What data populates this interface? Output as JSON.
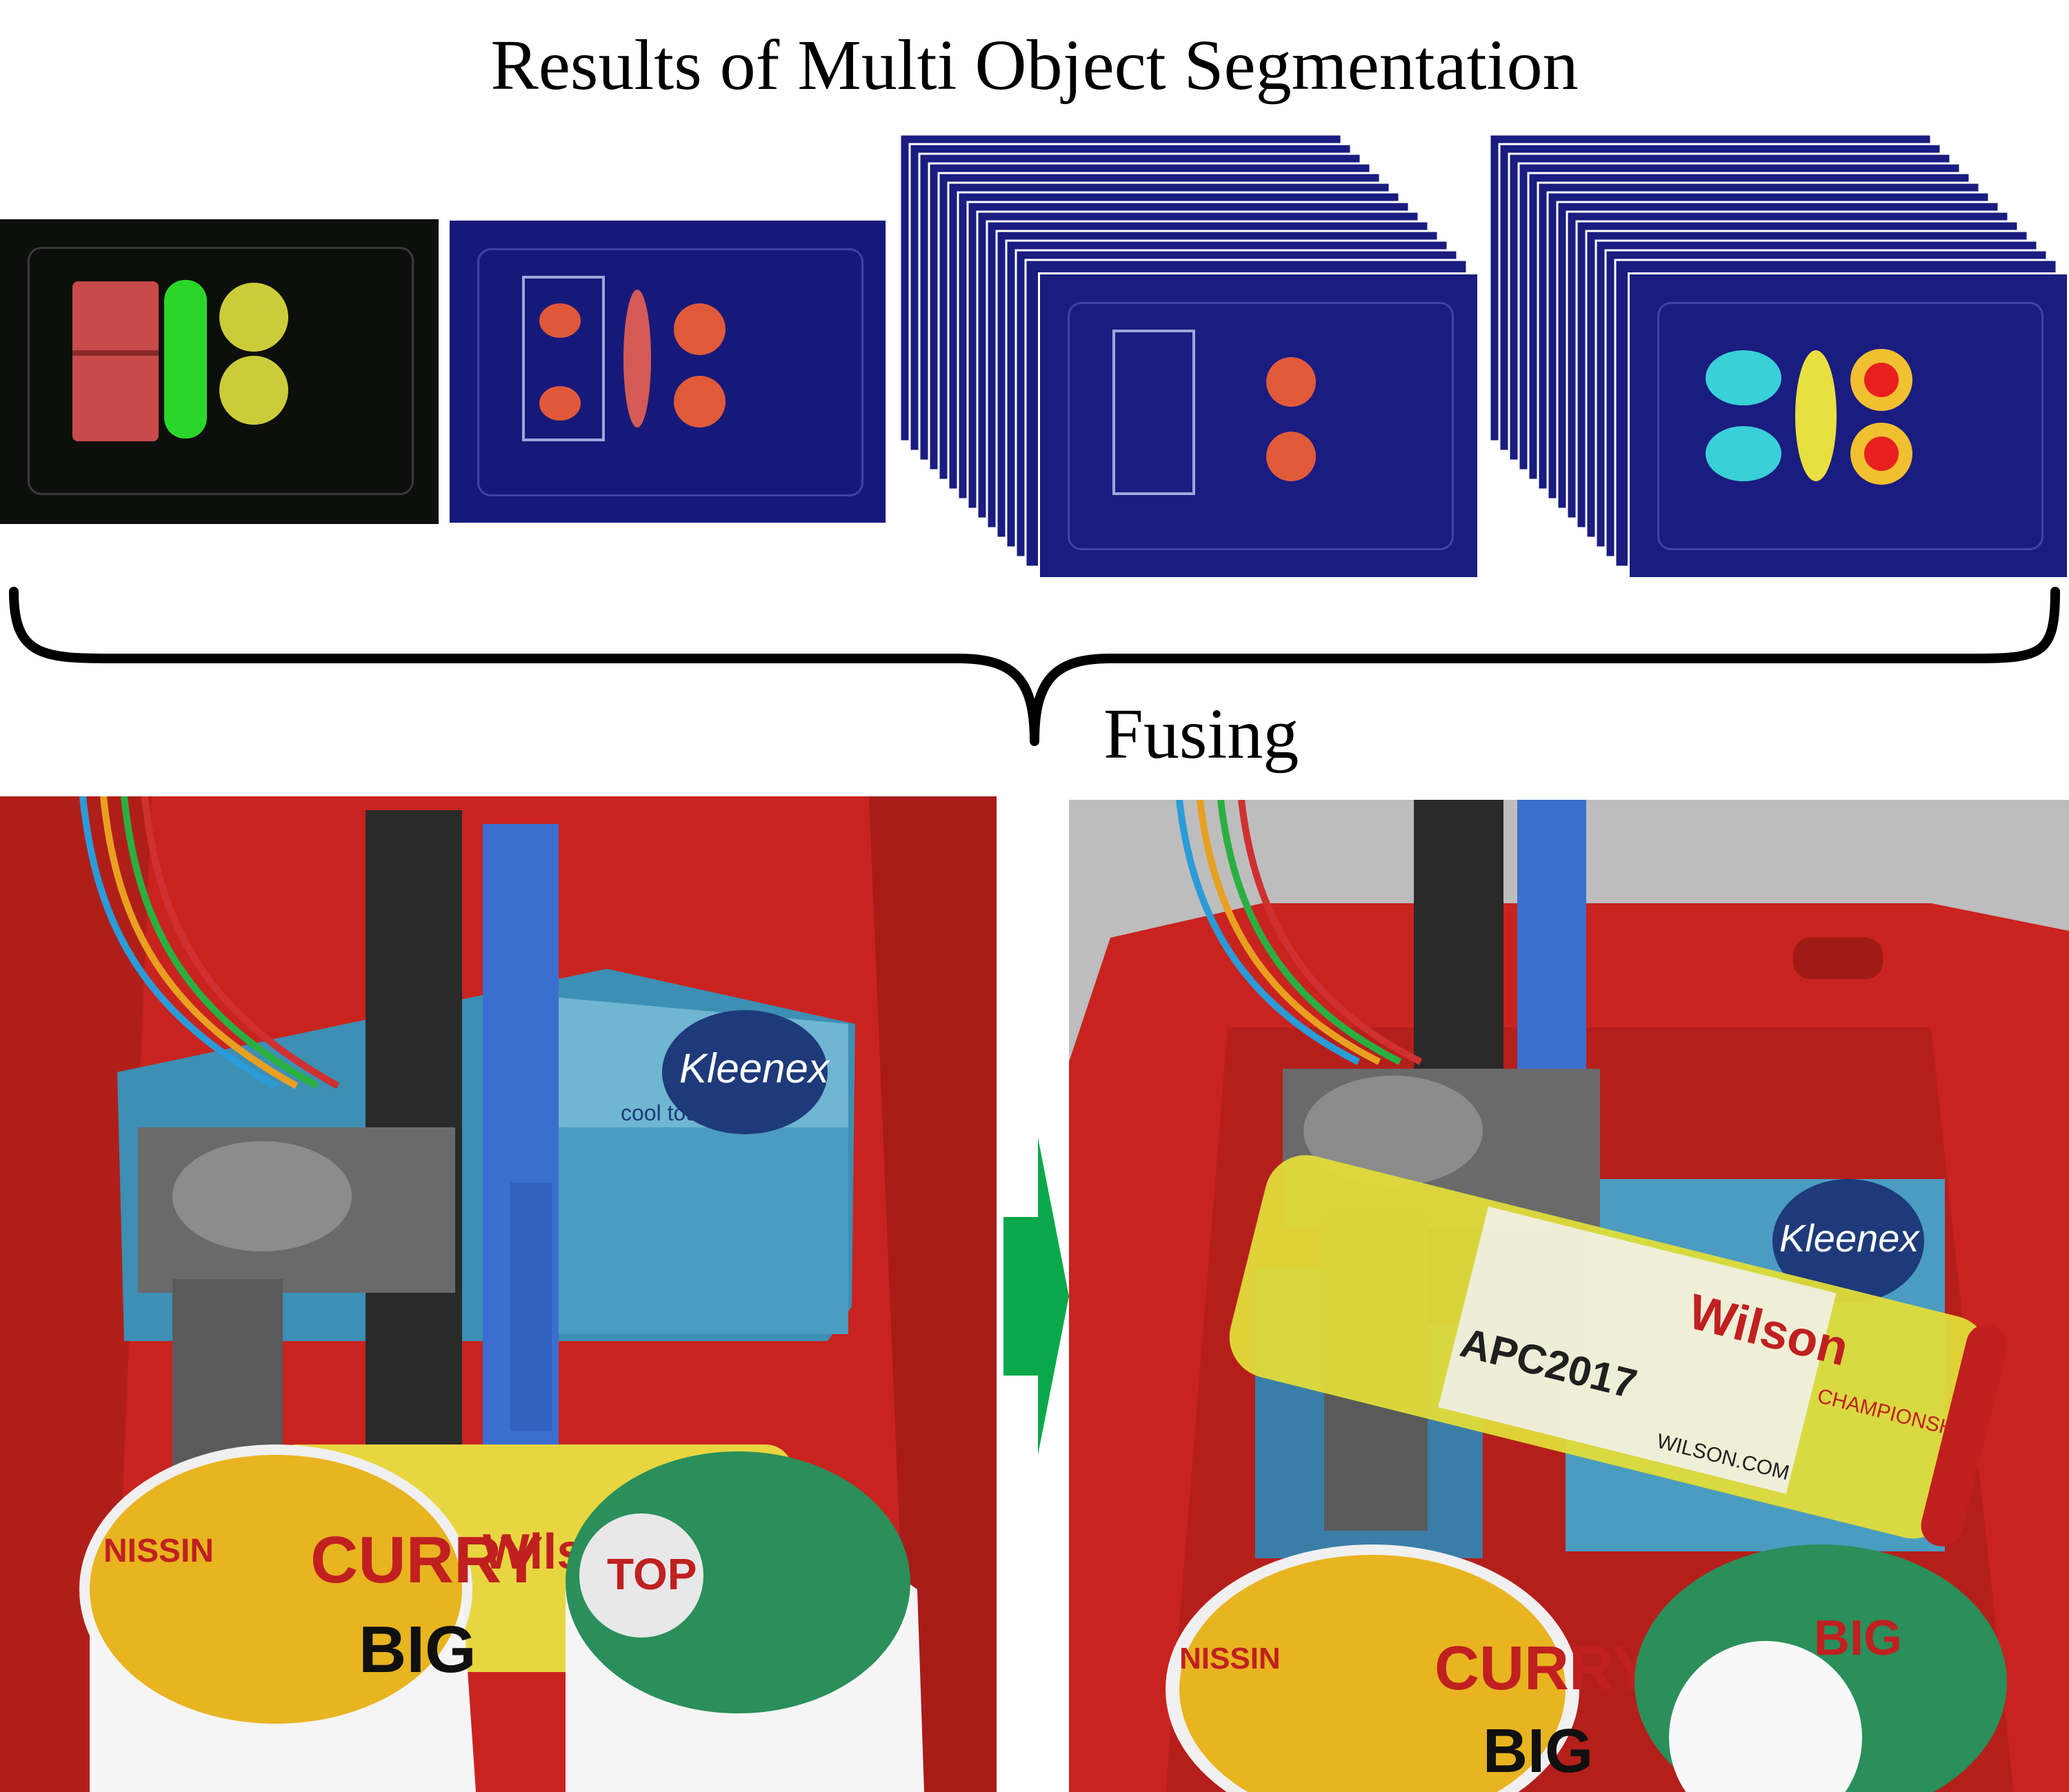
{
  "title": "Results of Multi Object Segmentation",
  "fusing_label": "Fusing",
  "colors": {
    "heatmap_background": "#17197a",
    "arrow": "#0aa84a",
    "tote_red": "#c9231f",
    "segment_red": "#c84a4a",
    "segment_green": "#2bd62b",
    "segment_yellow": "#cccc3a"
  },
  "photo_left": {
    "tissue_box_brand": "Kleenex",
    "tissue_box_text": "cool touch",
    "can_brand": "Wilson",
    "cup1_line1": "CURRY",
    "cup1_line2": "BIG",
    "cup_brand": "NISSIN",
    "cup2_text": "TOP"
  },
  "photo_right": {
    "tissue_box_brand": "Kleenex",
    "can_brand": "Wilson",
    "can_label": "APC2017",
    "can_url": "WILSON.COM",
    "can_side": "CHAMPIONSHIP",
    "cup1_line1": "CURRY",
    "cup1_line2": "BIG",
    "cup_brand": "NISSIN",
    "cup2_text": "BIG"
  }
}
